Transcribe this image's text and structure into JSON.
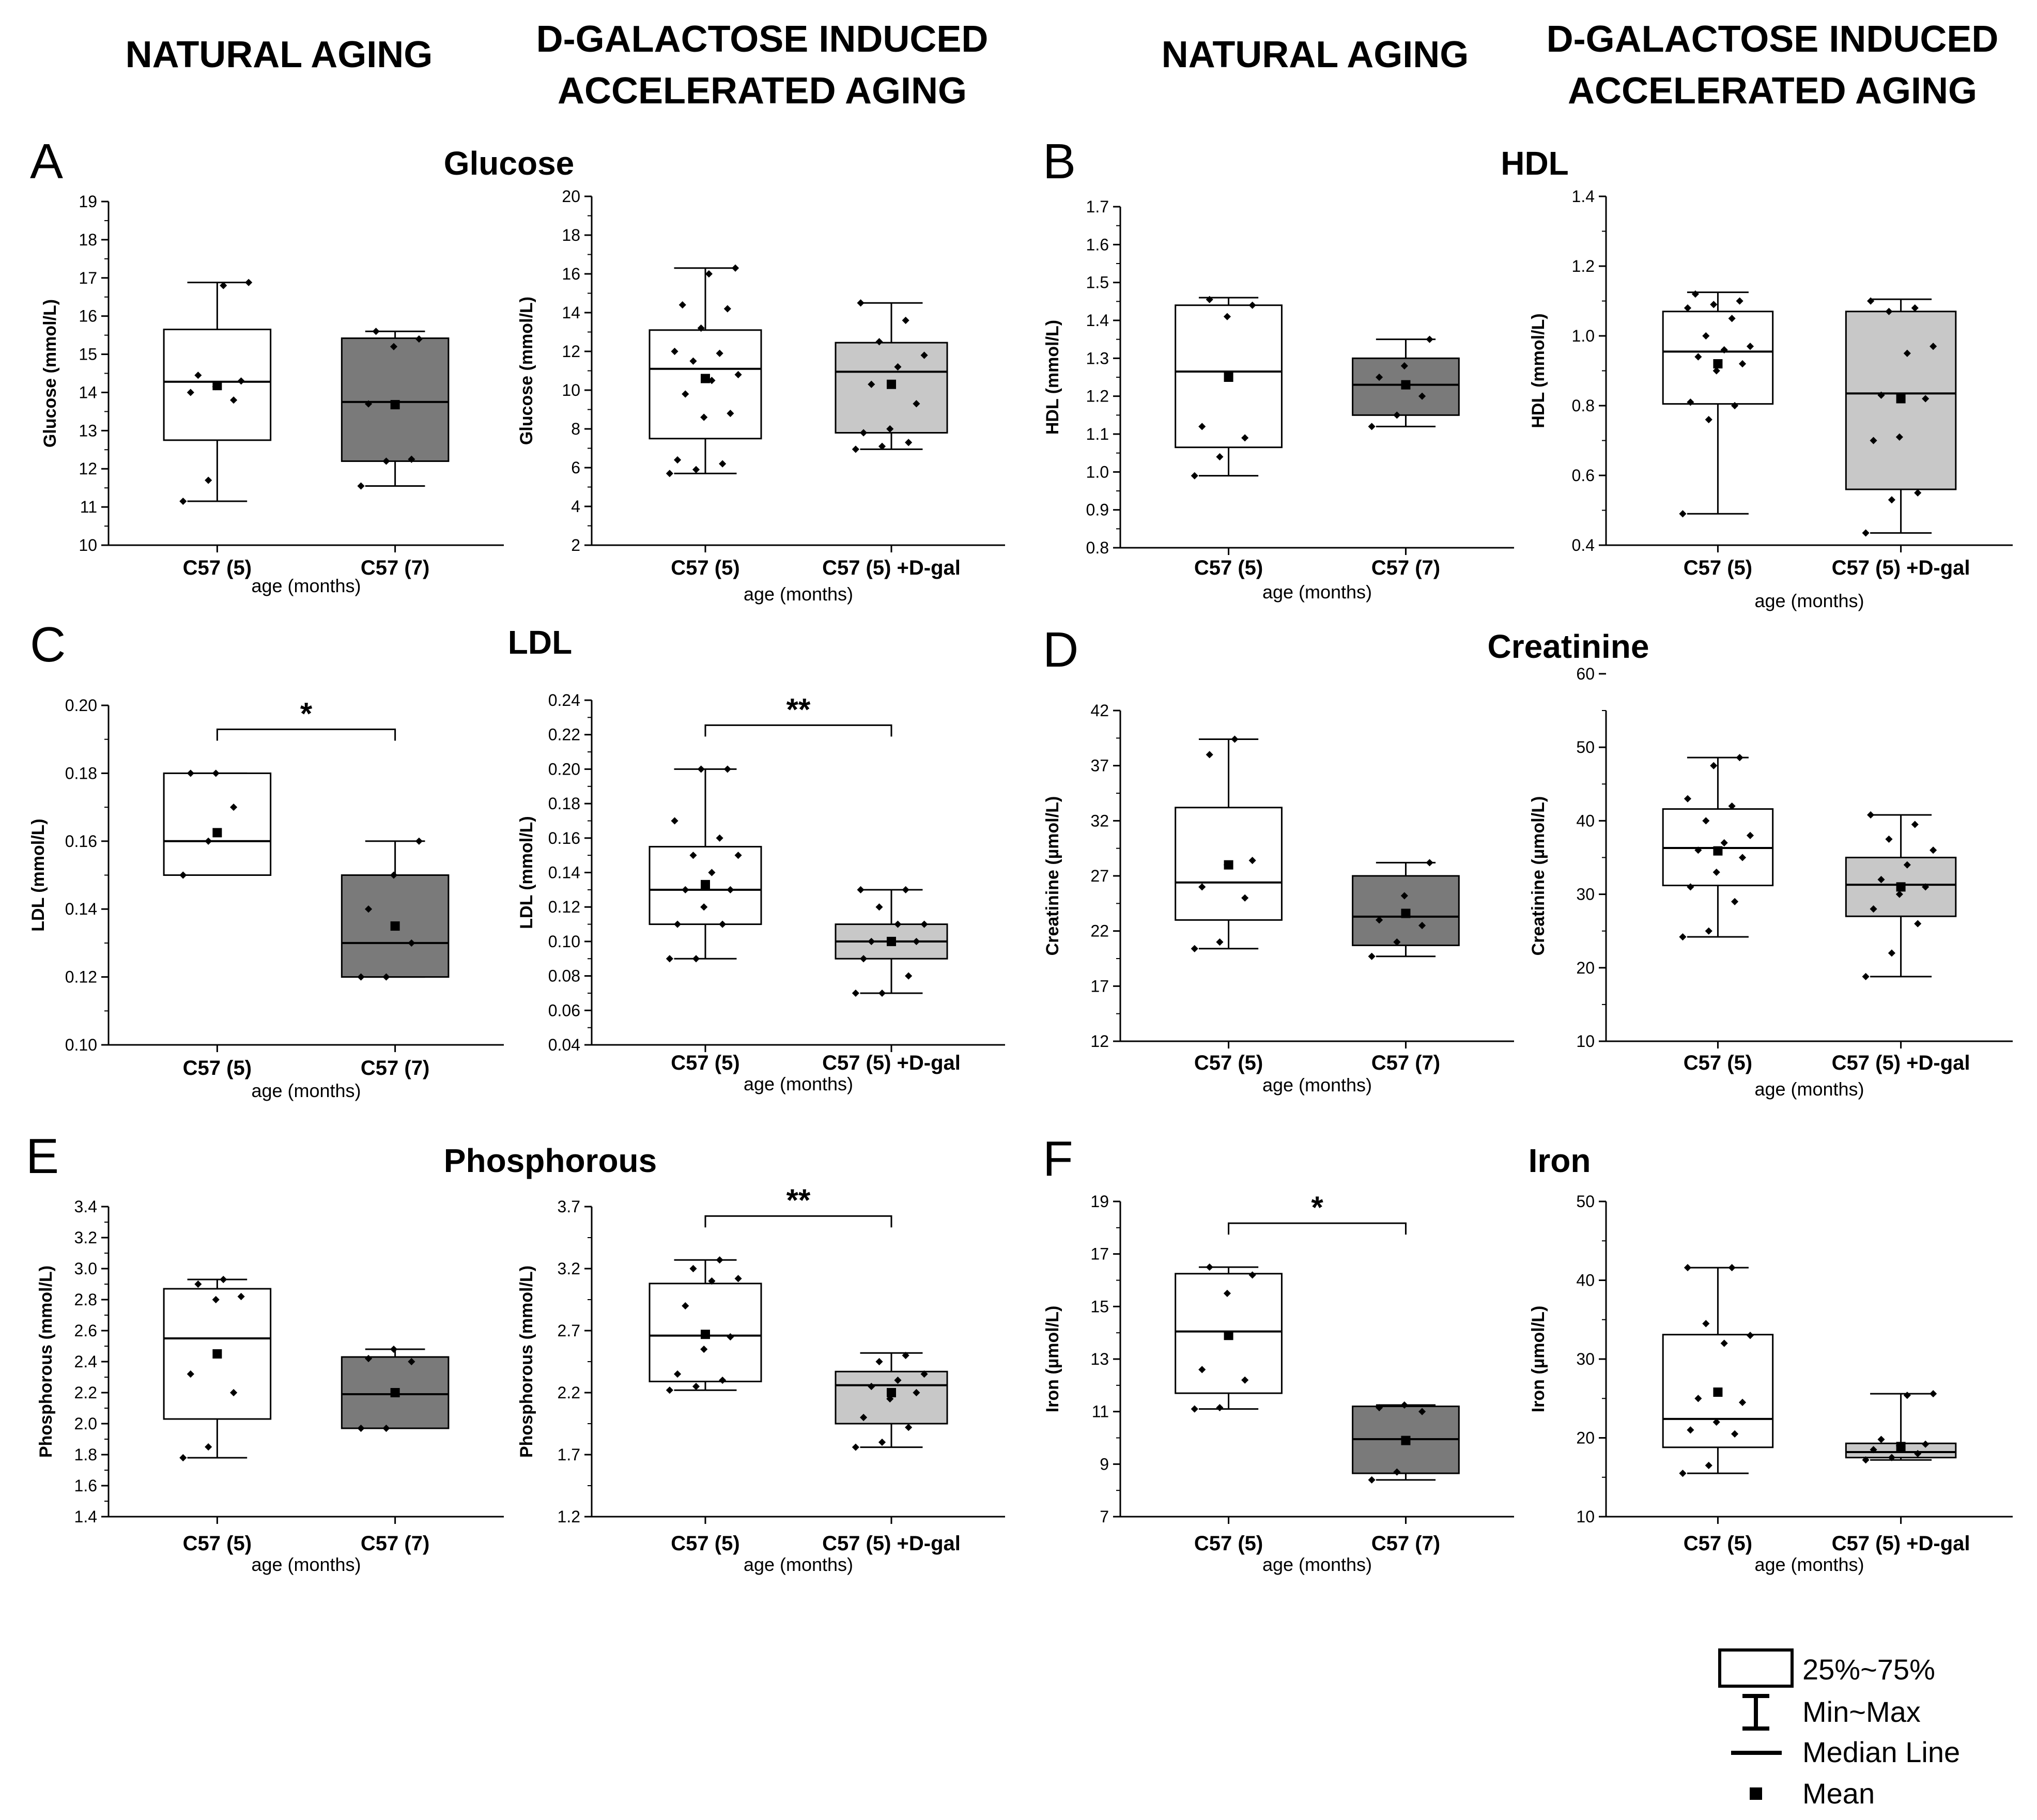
{
  "headers": {
    "natural_left": "NATURAL AGING",
    "dgal_left_1": "D-GALACTOSE INDUCED",
    "dgal_left_2": "ACCELERATED AGING",
    "natural_right": "NATURAL AGING",
    "dgal_right_1": "D-GALACTOSE INDUCED",
    "dgal_right_2": "ACCELERATED AGING"
  },
  "panels": [
    {
      "letter": "A",
      "title": "Glucose"
    },
    {
      "letter": "B",
      "title": "HDL"
    },
    {
      "letter": "C",
      "title": "LDL"
    },
    {
      "letter": "D",
      "title": "Creatinine"
    },
    {
      "letter": "E",
      "title": "Phosphorous"
    },
    {
      "letter": "F",
      "title": "Iron"
    }
  ],
  "legend": {
    "box": "25%~75%",
    "whisker": "Min~Max",
    "median": "Median Line",
    "mean": "Mean"
  },
  "colors": {
    "c57_5_box": "#ffffff",
    "c57_7_box": "#7a7a7a",
    "dgal_box": "#c8c8c8",
    "line": "#000000"
  },
  "chart_data": [
    {
      "type": "box",
      "title": "Glucose",
      "xlabel": "age (months)",
      "ylabel": "Glucose (mmol/L)",
      "ylim": [
        10,
        19
      ],
      "categories": [
        "C57 (5)",
        "C57 (7)"
      ],
      "boxes": [
        {
          "q1": 12.75,
          "median": 14.28,
          "q3": 15.65,
          "min": 11.15,
          "max": 16.88,
          "mean": 14.18,
          "points": [
            11.15,
            11.7,
            13.8,
            14.0,
            14.15,
            14.3,
            14.45,
            16.8,
            16.88
          ]
        },
        {
          "q1": 12.2,
          "median": 13.75,
          "q3": 15.42,
          "min": 11.55,
          "max": 15.6,
          "mean": 13.68,
          "points": [
            11.55,
            12.2,
            12.25,
            13.7,
            15.2,
            15.4,
            15.6
          ]
        }
      ]
    },
    {
      "type": "box",
      "title": "Glucose",
      "xlabel": "age (months)",
      "ylabel": "Glucose (mmol/L)",
      "ylim": [
        2,
        20
      ],
      "categories": [
        "C57 (5)",
        "C57 (5) +D-gal"
      ],
      "boxes": [
        {
          "q1": 7.5,
          "median": 11.1,
          "q3": 13.1,
          "min": 5.7,
          "max": 16.3,
          "mean": 10.6,
          "points": [
            5.7,
            5.9,
            6.2,
            6.4,
            8.6,
            8.8,
            9.8,
            10.5,
            10.8,
            11.5,
            11.9,
            12.0,
            13.2,
            14.2,
            14.4,
            16.0,
            16.3
          ]
        },
        {
          "q1": 7.8,
          "median": 10.95,
          "q3": 12.45,
          "min": 6.95,
          "max": 14.5,
          "mean": 10.3,
          "points": [
            6.95,
            7.1,
            7.3,
            7.8,
            8.0,
            9.3,
            10.3,
            11.2,
            11.8,
            12.5,
            13.6,
            14.5
          ]
        }
      ]
    },
    {
      "type": "box",
      "title": "HDL",
      "xlabel": "age (months)",
      "ylabel": "HDL (mmol/L)",
      "ylim": [
        0.8,
        1.7
      ],
      "categories": [
        "C57 (5)",
        "C57 (7)"
      ],
      "boxes": [
        {
          "q1": 1.065,
          "median": 1.265,
          "q3": 1.44,
          "min": 0.99,
          "max": 1.46,
          "mean": 1.25,
          "points": [
            0.99,
            1.04,
            1.09,
            1.12,
            1.41,
            1.44,
            1.455
          ]
        },
        {
          "q1": 1.15,
          "median": 1.23,
          "q3": 1.3,
          "min": 1.12,
          "max": 1.35,
          "mean": 1.23,
          "points": [
            1.12,
            1.15,
            1.2,
            1.25,
            1.28,
            1.35
          ]
        }
      ]
    },
    {
      "type": "box",
      "title": "HDL",
      "xlabel": "age (months)",
      "ylabel": "HDL (mmol/L)",
      "ylim": [
        0.4,
        1.4
      ],
      "categories": [
        "C57 (5)",
        "C57 (5) +D-gal"
      ],
      "boxes": [
        {
          "q1": 0.805,
          "median": 0.955,
          "q3": 1.07,
          "min": 0.49,
          "max": 1.125,
          "mean": 0.92,
          "points": [
            0.49,
            0.76,
            0.8,
            0.81,
            0.9,
            0.92,
            0.94,
            0.96,
            0.97,
            1.0,
            1.05,
            1.08,
            1.09,
            1.1,
            1.12
          ]
        },
        {
          "q1": 0.56,
          "median": 0.835,
          "q3": 1.07,
          "min": 0.435,
          "max": 1.105,
          "mean": 0.82,
          "points": [
            0.435,
            0.53,
            0.55,
            0.7,
            0.71,
            0.82,
            0.83,
            0.95,
            0.97,
            1.07,
            1.08,
            1.1
          ]
        }
      ]
    },
    {
      "type": "box",
      "title": "LDL",
      "xlabel": "age (months)",
      "ylabel": "LDL (mmol/L)",
      "ylim": [
        0.1,
        0.2
      ],
      "categories": [
        "C57 (5)",
        "C57 (7)"
      ],
      "significance": "*",
      "boxes": [
        {
          "q1": 0.15,
          "median": 0.16,
          "q3": 0.18,
          "min": 0.15,
          "max": 0.18,
          "mean": 0.1625,
          "points": [
            0.15,
            0.16,
            0.17,
            0.18,
            0.18
          ]
        },
        {
          "q1": 0.12,
          "median": 0.13,
          "q3": 0.15,
          "min": 0.12,
          "max": 0.16,
          "mean": 0.135,
          "points": [
            0.12,
            0.12,
            0.13,
            0.14,
            0.15,
            0.16
          ]
        }
      ]
    },
    {
      "type": "box",
      "title": "LDL",
      "xlabel": "age (months)",
      "ylabel": "LDL (mmol/L)",
      "ylim": [
        0.04,
        0.24
      ],
      "categories": [
        "C57 (5)",
        "C57 (5) +D-gal"
      ],
      "significance": "**",
      "boxes": [
        {
          "q1": 0.11,
          "median": 0.13,
          "q3": 0.155,
          "min": 0.09,
          "max": 0.2,
          "mean": 0.133,
          "points": [
            0.09,
            0.09,
            0.11,
            0.11,
            0.12,
            0.13,
            0.13,
            0.14,
            0.15,
            0.15,
            0.16,
            0.17,
            0.2,
            0.2
          ]
        },
        {
          "q1": 0.09,
          "median": 0.1,
          "q3": 0.11,
          "min": 0.07,
          "max": 0.13,
          "mean": 0.1,
          "points": [
            0.07,
            0.07,
            0.08,
            0.09,
            0.1,
            0.1,
            0.1,
            0.11,
            0.11,
            0.12,
            0.13,
            0.13
          ]
        }
      ]
    },
    {
      "type": "box",
      "title": "Creatinine",
      "xlabel": "age (months)",
      "ylabel": "Creatinine (µmol/L)",
      "ylim": [
        12,
        42
      ],
      "categories": [
        "C57 (5)",
        "C57 (7)"
      ],
      "boxes": [
        {
          "q1": 23.0,
          "median": 26.4,
          "q3": 33.2,
          "min": 20.4,
          "max": 39.4,
          "mean": 28.0,
          "points": [
            20.4,
            21.0,
            25.0,
            26.0,
            28.0,
            28.4,
            38.0,
            39.4
          ]
        },
        {
          "q1": 20.7,
          "median": 23.3,
          "q3": 27.0,
          "min": 19.7,
          "max": 28.2,
          "mean": 23.6,
          "points": [
            19.7,
            21.0,
            22.5,
            23.0,
            25.2,
            28.2
          ]
        }
      ]
    },
    {
      "type": "box",
      "title": "Creatinine",
      "xlabel": "age (months)",
      "ylabel": "Creatinine (µmol/L)",
      "ylim": [
        10,
        55
      ],
      "categories": [
        "C57 (5)",
        "C57 (5) +D-gal"
      ],
      "boxes": [
        {
          "q1": 31.2,
          "median": 36.3,
          "q3": 41.6,
          "min": 24.2,
          "max": 48.6,
          "mean": 35.9,
          "points": [
            24.2,
            25.0,
            29.0,
            31.0,
            33.0,
            35.0,
            36.0,
            37.0,
            38.0,
            40.0,
            42.0,
            43.0,
            47.5,
            48.6
          ]
        },
        {
          "q1": 27.0,
          "median": 31.3,
          "q3": 35.0,
          "min": 18.8,
          "max": 40.8,
          "mean": 31.0,
          "points": [
            18.8,
            22.0,
            26.0,
            28.0,
            30.0,
            31.0,
            32.0,
            34.0,
            36.0,
            37.5,
            39.5,
            40.8
          ]
        }
      ]
    },
    {
      "type": "box",
      "title": "Phosphorous",
      "xlabel": "age (months)",
      "ylabel": "Phosphorous (mmol/L)",
      "ylim": [
        1.4,
        3.4
      ],
      "categories": [
        "C57 (5)",
        "C57 (7)"
      ],
      "boxes": [
        {
          "q1": 2.03,
          "median": 2.55,
          "q3": 2.87,
          "min": 1.78,
          "max": 2.93,
          "mean": 2.45,
          "points": [
            1.78,
            1.85,
            2.2,
            2.32,
            2.8,
            2.82,
            2.9,
            2.93
          ]
        },
        {
          "q1": 1.97,
          "median": 2.19,
          "q3": 2.43,
          "min": 1.97,
          "max": 2.48,
          "mean": 2.2,
          "points": [
            1.97,
            1.97,
            2.4,
            2.42,
            2.48
          ]
        }
      ]
    },
    {
      "type": "box",
      "title": "Phosphorous",
      "xlabel": "age (months)",
      "ylabel": "Phosphorous (mmol/L)",
      "ylim": [
        1.2,
        3.7
      ],
      "categories": [
        "C57 (5)",
        "C57 (5) +D-gal"
      ],
      "significance": "**",
      "boxes": [
        {
          "q1": 2.29,
          "median": 2.66,
          "q3": 3.08,
          "min": 2.22,
          "max": 3.27,
          "mean": 2.67,
          "points": [
            2.22,
            2.25,
            2.3,
            2.35,
            2.55,
            2.65,
            2.9,
            3.1,
            3.12,
            3.2,
            3.27
          ]
        },
        {
          "q1": 1.95,
          "median": 2.26,
          "q3": 2.37,
          "min": 1.76,
          "max": 2.52,
          "mean": 2.2,
          "points": [
            1.76,
            1.8,
            1.92,
            2.0,
            2.15,
            2.2,
            2.25,
            2.3,
            2.35,
            2.45,
            2.5
          ]
        }
      ]
    },
    {
      "type": "box",
      "title": "Iron",
      "xlabel": "age (months)",
      "ylabel": "Iron (µmol/L)",
      "ylim": [
        7,
        19
      ],
      "categories": [
        "C57 (5)",
        "C57 (7)"
      ],
      "significance": "*",
      "boxes": [
        {
          "q1": 11.7,
          "median": 14.05,
          "q3": 16.25,
          "min": 11.1,
          "max": 16.5,
          "mean": 13.9,
          "points": [
            11.1,
            11.15,
            12.2,
            12.6,
            15.5,
            16.2,
            16.5
          ]
        },
        {
          "q1": 8.65,
          "median": 9.95,
          "q3": 11.2,
          "min": 8.4,
          "max": 11.25,
          "mean": 9.9,
          "points": [
            8.4,
            8.7,
            11.0,
            11.15,
            11.25
          ]
        }
      ]
    },
    {
      "type": "box",
      "title": "Iron",
      "xlabel": "age (months)",
      "ylabel": "Iron (µmol/L)",
      "ylim": [
        10,
        50
      ],
      "categories": [
        "C57 (5)",
        "C57 (5) +D-gal"
      ],
      "boxes": [
        {
          "q1": 18.8,
          "median": 22.4,
          "q3": 33.1,
          "min": 15.5,
          "max": 41.6,
          "mean": 25.8,
          "points": [
            15.5,
            16.5,
            20.5,
            21.0,
            22.0,
            24.5,
            25.0,
            32.0,
            33.0,
            34.5,
            41.6,
            41.6
          ]
        },
        {
          "q1": 17.5,
          "median": 18.2,
          "q3": 19.3,
          "min": 17.2,
          "max": 25.6,
          "mean": 18.9,
          "points": [
            17.2,
            17.5,
            18.0,
            18.5,
            19.0,
            19.2,
            19.8,
            25.4,
            25.6
          ]
        }
      ]
    }
  ]
}
